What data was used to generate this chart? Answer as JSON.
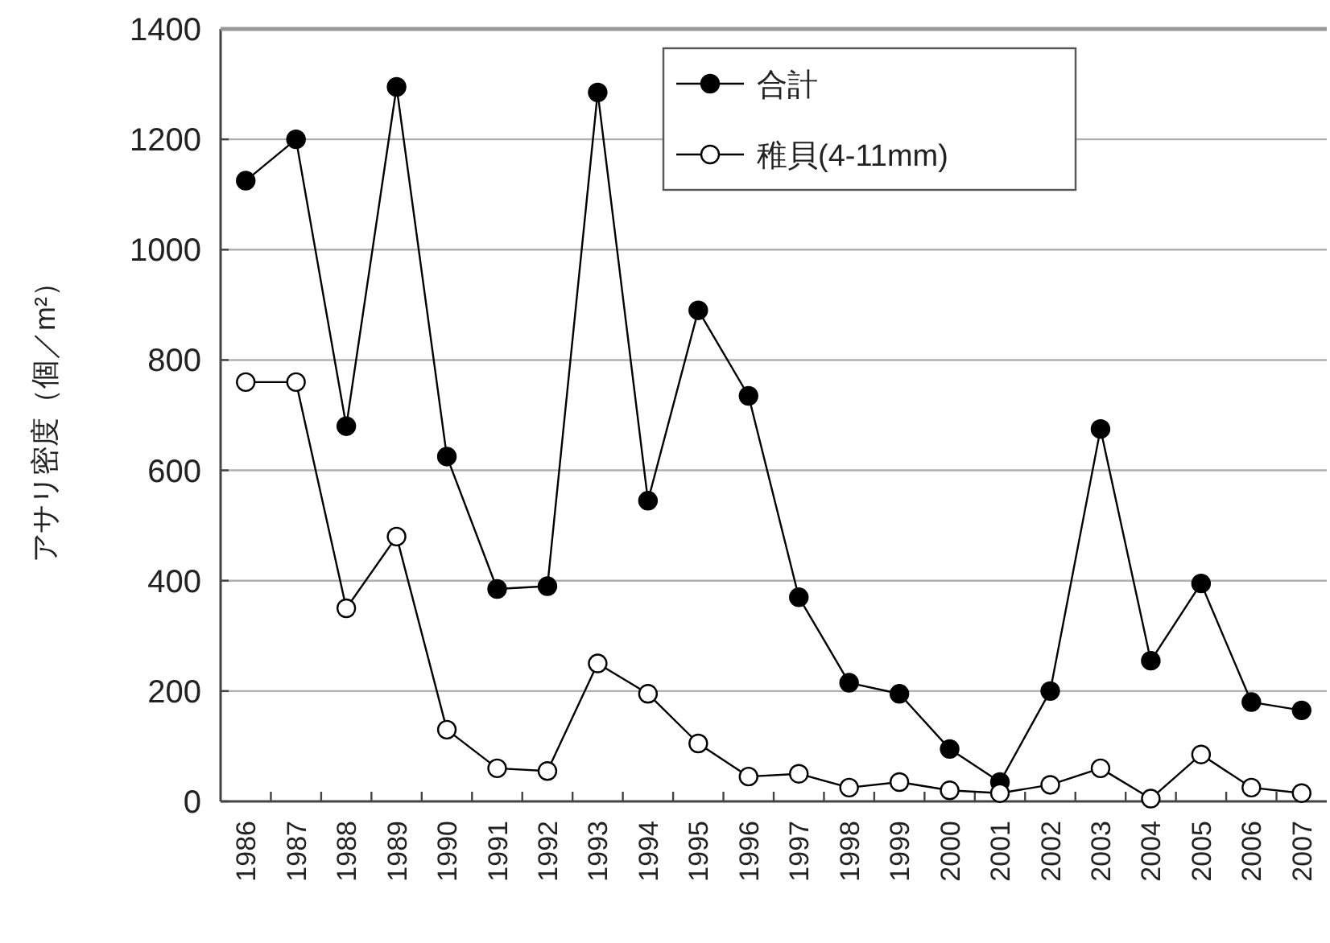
{
  "chart_data": {
    "type": "line",
    "ylabel": "アサリ密度（個／m²）",
    "categories": [
      "1986",
      "1987",
      "1988",
      "1989",
      "1990",
      "1991",
      "1992",
      "1993",
      "1994",
      "1995",
      "1996",
      "1997",
      "1998",
      "1999",
      "2000",
      "2001",
      "2002",
      "2003",
      "2004",
      "2005",
      "2006",
      "2007"
    ],
    "series": [
      {
        "name": "合計",
        "color": "#000000",
        "values": [
          1125,
          1200,
          680,
          1295,
          625,
          385,
          390,
          1285,
          545,
          890,
          735,
          370,
          215,
          195,
          95,
          35,
          200,
          675,
          255,
          395,
          180,
          165
        ]
      },
      {
        "name": "稚貝(4-11mm)",
        "color": "#000000",
        "values": [
          760,
          760,
          350,
          480,
          130,
          60,
          55,
          250,
          195,
          105,
          45,
          50,
          25,
          35,
          20,
          15,
          30,
          60,
          5,
          85,
          25,
          15
        ]
      }
    ],
    "ylim": [
      0,
      1400
    ],
    "yticks": [
      0,
      200,
      400,
      600,
      800,
      1000,
      1200,
      1400
    ],
    "grid": "y",
    "legend": "top",
    "marker": "circle",
    "line_style": "solid"
  }
}
